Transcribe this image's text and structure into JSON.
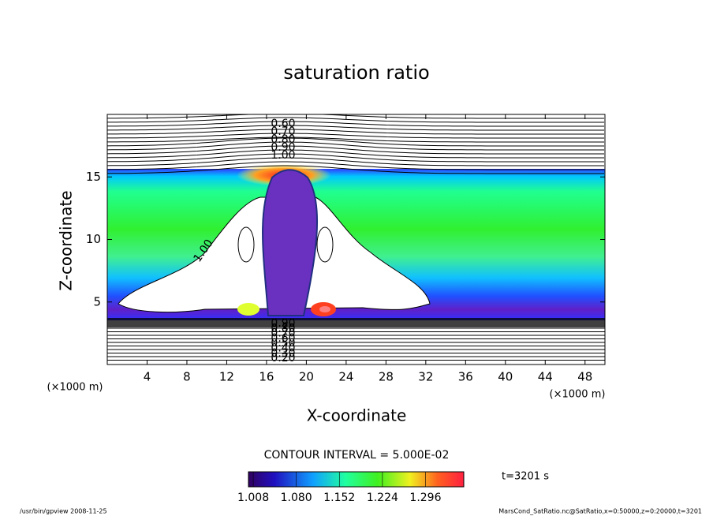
{
  "chart_data": {
    "type": "contour",
    "title": "saturation ratio",
    "xlabel": "X-coordinate",
    "ylabel": "Z-coordinate",
    "x_unit": "(×1000 m)",
    "y_unit": "(×1000 m)",
    "xlim": [
      0,
      50
    ],
    "ylim": [
      0,
      20
    ],
    "xticks": [
      4,
      8,
      12,
      16,
      20,
      24,
      28,
      32,
      36,
      40,
      44,
      48
    ],
    "yticks": [
      5,
      10,
      15
    ],
    "contour_interval": "CONTOUR INTERVAL = 5.000E-02",
    "time_label": "t=3201 s",
    "clim": [
      1.0,
      1.36
    ],
    "cticks": [
      {
        "value": 1.008,
        "label": "1.008"
      },
      {
        "value": 1.08,
        "label": "1.080"
      },
      {
        "value": 1.152,
        "label": "1.152"
      },
      {
        "value": 1.224,
        "label": "1.224"
      },
      {
        "value": 1.296,
        "label": "1.296"
      }
    ],
    "contour_labels_top": [
      {
        "value": 0.6,
        "label": "0.60"
      },
      {
        "value": 0.7,
        "label": "0.70"
      },
      {
        "value": 0.8,
        "label": "0.80"
      },
      {
        "value": 0.9,
        "label": "0.90"
      },
      {
        "value": 1.0,
        "label": "1.00"
      }
    ],
    "contour_labels_bottom": [
      {
        "value": 0.9,
        "label": "0.90"
      },
      {
        "value": 0.8,
        "label": "0.80"
      },
      {
        "value": 0.7,
        "label": "0.70"
      },
      {
        "value": 0.6,
        "label": "0.60"
      },
      {
        "value": 0.5,
        "label": "0.50"
      },
      {
        "value": 0.4,
        "label": "0.40"
      },
      {
        "value": 0.3,
        "label": "0.30"
      },
      {
        "value": 0.2,
        "label": "0.20"
      }
    ],
    "contour_label_left": {
      "value": 1.0,
      "label": "1.00"
    },
    "footer_left": "/usr/bin/gpview   2008-11-25",
    "footer_right": "MarsCond_SatRatio.nc@SatRatio,x=0:50000,z=0:20000,t=3201"
  }
}
